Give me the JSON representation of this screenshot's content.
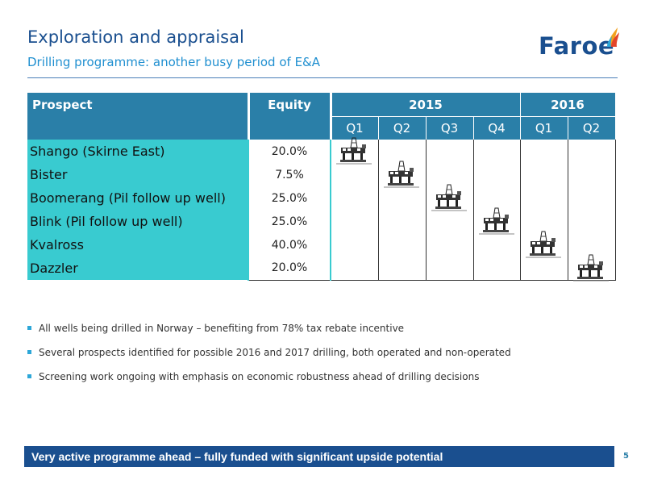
{
  "header": {
    "title": "Exploration and appraisal",
    "subtitle": "Drilling programme: another busy period of E&A",
    "logo_text": "Faroe"
  },
  "table": {
    "col_prospect": "Prospect",
    "col_equity": "Equity",
    "years": [
      "2015",
      "2016"
    ],
    "quarters": [
      "Q1",
      "Q2",
      "Q3",
      "Q4",
      "Q1",
      "Q2"
    ],
    "rows": [
      {
        "name": "Shango (Skirne East)",
        "equity": "20.0%",
        "quarter_index": 0
      },
      {
        "name": "Bister",
        "equity": "7.5%",
        "quarter_index": 1
      },
      {
        "name": "Boomerang (Pil follow up well)",
        "equity": "25.0%",
        "quarter_index": 2
      },
      {
        "name": "Blink (Pil follow up well)",
        "equity": "25.0%",
        "quarter_index": 3
      },
      {
        "name": "Kvalross",
        "equity": "40.0%",
        "quarter_index": 4
      },
      {
        "name": "Dazzler",
        "equity": "20.0%",
        "quarter_index": 5
      }
    ]
  },
  "bullets": [
    "All wells being drilled in Norway – benefiting from 78% tax rebate incentive",
    "Several prospects identified for possible 2016 and 2017 drilling, both operated and non-operated",
    "Screening work ongoing with emphasis on economic robustness ahead of drilling decisions"
  ],
  "banner": "Very active programme ahead – fully funded with significant upside potential",
  "page_number": "5",
  "colors": {
    "navy": "#1a4f8f",
    "header_blue": "#2a7fa8",
    "turquoise": "#39cbd0",
    "accent_blue": "#1f8fd0"
  }
}
